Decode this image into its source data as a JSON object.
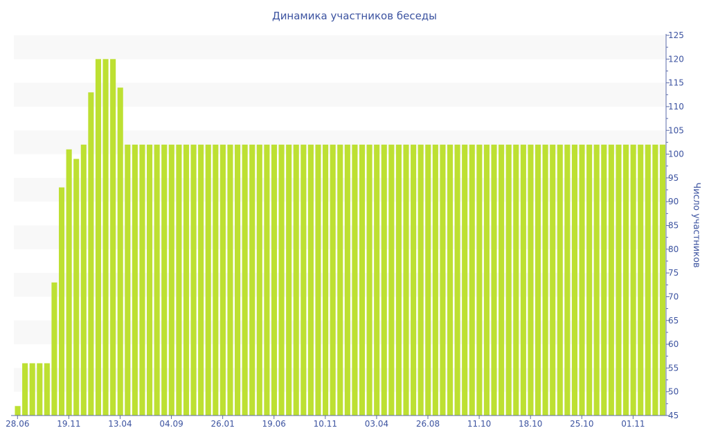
{
  "chart_data": {
    "type": "bar",
    "title": "Динамика участников беседы",
    "ylabel": "Число участников",
    "xlabel": "",
    "ylim": [
      45,
      125
    ],
    "y_ticks": [
      45,
      50,
      55,
      60,
      65,
      70,
      75,
      80,
      85,
      90,
      95,
      100,
      105,
      110,
      115,
      120,
      125
    ],
    "y_axis_position": "right",
    "grid": "alternating horizontal bands",
    "x_tick_labels": [
      {
        "index": 0,
        "label": "28.06"
      },
      {
        "index": 7,
        "label": "19.11"
      },
      {
        "index": 14,
        "label": "13.04"
      },
      {
        "index": 21,
        "label": "04.09"
      },
      {
        "index": 28,
        "label": "26.01"
      },
      {
        "index": 35,
        "label": "19.06"
      },
      {
        "index": 42,
        "label": "10.11"
      },
      {
        "index": 49,
        "label": "03.04"
      },
      {
        "index": 56,
        "label": "26.08"
      },
      {
        "index": 63,
        "label": "11.10"
      },
      {
        "index": 70,
        "label": "18.10"
      },
      {
        "index": 77,
        "label": "25.10"
      },
      {
        "index": 84,
        "label": "01.11"
      }
    ],
    "values": [
      47,
      56,
      56,
      56,
      56,
      73,
      93,
      101,
      99,
      102,
      113,
      120,
      120,
      120,
      114,
      102,
      102,
      102,
      102,
      102,
      102,
      102,
      102,
      102,
      102,
      102,
      102,
      102,
      102,
      102,
      102,
      102,
      102,
      102,
      102,
      102,
      102,
      102,
      102,
      102,
      102,
      102,
      102,
      102,
      102,
      102,
      102,
      102,
      102,
      102,
      102,
      102,
      102,
      102,
      102,
      102,
      102,
      102,
      102,
      102,
      102,
      102,
      102,
      102,
      102,
      102,
      102,
      102,
      102,
      102,
      102,
      102,
      102,
      102,
      102,
      102,
      102,
      102,
      102,
      102,
      102,
      102,
      102,
      102,
      102,
      102,
      102,
      102,
      102
    ],
    "colors": {
      "bar": "#bde032",
      "text": "#3c53a0",
      "band": "#f8f8f8",
      "axis": "#5a6aa8"
    }
  }
}
